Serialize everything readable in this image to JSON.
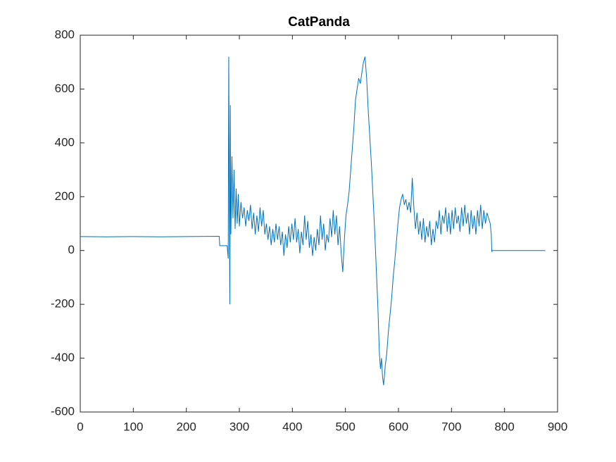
{
  "chart_data": {
    "type": "line",
    "title": "CatPanda",
    "color": "#0072bd",
    "xlim": [
      0,
      900
    ],
    "xticks": [
      0,
      100,
      200,
      300,
      400,
      500,
      600,
      700,
      800,
      900
    ],
    "ylim": [
      -600,
      800
    ],
    "yticks": [
      -600,
      -400,
      -200,
      0,
      200,
      400,
      600,
      800
    ],
    "x": [
      0,
      50,
      100,
      150,
      200,
      262,
      263,
      277,
      279,
      280,
      281,
      282,
      283,
      284,
      286,
      288,
      290,
      292,
      294,
      296,
      298,
      300,
      303,
      306,
      309,
      312,
      315,
      318,
      321,
      324,
      327,
      330,
      333,
      336,
      339,
      342,
      345,
      348,
      351,
      354,
      357,
      360,
      363,
      366,
      369,
      372,
      375,
      378,
      381,
      384,
      387,
      390,
      393,
      396,
      399,
      402,
      405,
      408,
      411,
      414,
      417,
      420,
      423,
      426,
      429,
      432,
      435,
      438,
      441,
      444,
      447,
      450,
      453,
      456,
      459,
      462,
      465,
      468,
      471,
      474,
      477,
      480,
      483,
      486,
      489,
      492,
      495,
      498,
      501,
      504,
      507,
      510,
      513,
      516,
      519,
      522,
      525,
      528,
      531,
      534,
      537,
      540,
      543,
      546,
      549,
      552,
      555,
      558,
      561,
      564,
      566,
      568,
      570,
      572,
      575,
      578,
      581,
      584,
      587,
      590,
      593,
      596,
      599,
      602,
      605,
      608,
      611,
      614,
      617,
      620,
      623,
      626,
      629,
      632,
      635,
      638,
      641,
      644,
      647,
      650,
      653,
      656,
      659,
      662,
      665,
      668,
      671,
      674,
      677,
      680,
      683,
      686,
      689,
      692,
      695,
      698,
      701,
      704,
      707,
      710,
      713,
      716,
      719,
      722,
      725,
      728,
      731,
      734,
      737,
      740,
      743,
      746,
      749,
      752,
      755,
      758,
      761,
      764,
      767,
      770,
      773,
      775,
      776,
      777,
      877
    ],
    "values": [
      52,
      51,
      52,
      51,
      52,
      53,
      18,
      18,
      -30,
      720,
      250,
      -200,
      540,
      60,
      350,
      120,
      300,
      80,
      230,
      100,
      210,
      90,
      180,
      120,
      160,
      90,
      150,
      110,
      170,
      80,
      140,
      60,
      130,
      70,
      160,
      90,
      150,
      60,
      100,
      40,
      90,
      20,
      80,
      30,
      100,
      40,
      90,
      20,
      70,
      -20,
      60,
      10,
      90,
      30,
      100,
      40,
      120,
      30,
      80,
      -10,
      70,
      20,
      130,
      40,
      110,
      10,
      60,
      -20,
      50,
      0,
      80,
      20,
      130,
      40,
      100,
      0,
      60,
      30,
      120,
      50,
      150,
      60,
      130,
      20,
      90,
      -10,
      -80,
      40,
      130,
      170,
      220,
      300,
      380,
      460,
      560,
      600,
      640,
      620,
      660,
      700,
      720,
      640,
      520,
      420,
      320,
      200,
      80,
      -60,
      -200,
      -380,
      -440,
      -400,
      -470,
      -500,
      -430,
      -380,
      -300,
      -240,
      -180,
      -100,
      -40,
      30,
      100,
      160,
      190,
      210,
      170,
      190,
      150,
      180,
      140,
      270,
      160,
      80,
      140,
      60,
      110,
      40,
      120,
      30,
      90,
      50,
      110,
      20,
      80,
      30,
      110,
      80,
      150,
      60,
      130,
      100,
      160,
      70,
      140,
      60,
      150,
      80,
      160,
      100,
      130,
      70,
      160,
      90,
      170,
      100,
      140,
      60,
      150,
      80,
      130,
      60,
      150,
      90,
      170,
      80,
      150,
      100,
      140,
      120,
      100,
      60,
      -5,
      0,
      0
    ]
  }
}
